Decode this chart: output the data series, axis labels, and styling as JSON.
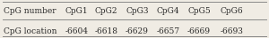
{
  "row1_label": "CpG number",
  "row2_label": "CpG location",
  "row1_values": [
    "CpG1",
    "CpG2",
    "CpG3",
    "CpG4",
    "CpG5",
    "CpG6"
  ],
  "row2_values": [
    "-6604",
    "-6618",
    "-6629",
    "-6657",
    "-6669",
    "-6693"
  ],
  "bg_color": "#f0ece4",
  "text_color": "#2a2a2a",
  "line_color": "#888888",
  "font_size": 6.5,
  "figsize": [
    3.0,
    0.43
  ],
  "dpi": 100
}
